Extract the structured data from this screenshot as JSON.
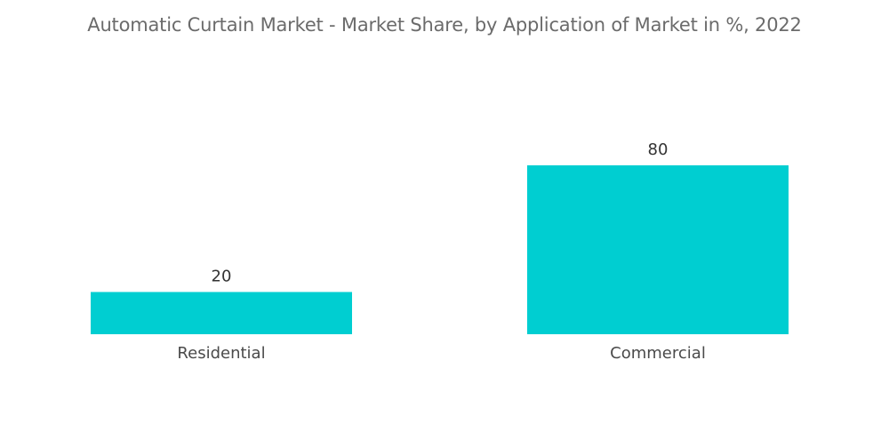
{
  "chart_data": {
    "type": "bar",
    "title": "Automatic Curtain Market - Market Share, by Application of Market in %, 2022",
    "categories": [
      "Residential",
      "Commercial"
    ],
    "values": [
      20,
      80
    ],
    "xlabel": "",
    "ylabel": "",
    "ylim": [
      0,
      80
    ],
    "grid": false,
    "legend": "none",
    "bar_color": "#00CED1",
    "data_labels": [
      "20",
      "80"
    ]
  }
}
